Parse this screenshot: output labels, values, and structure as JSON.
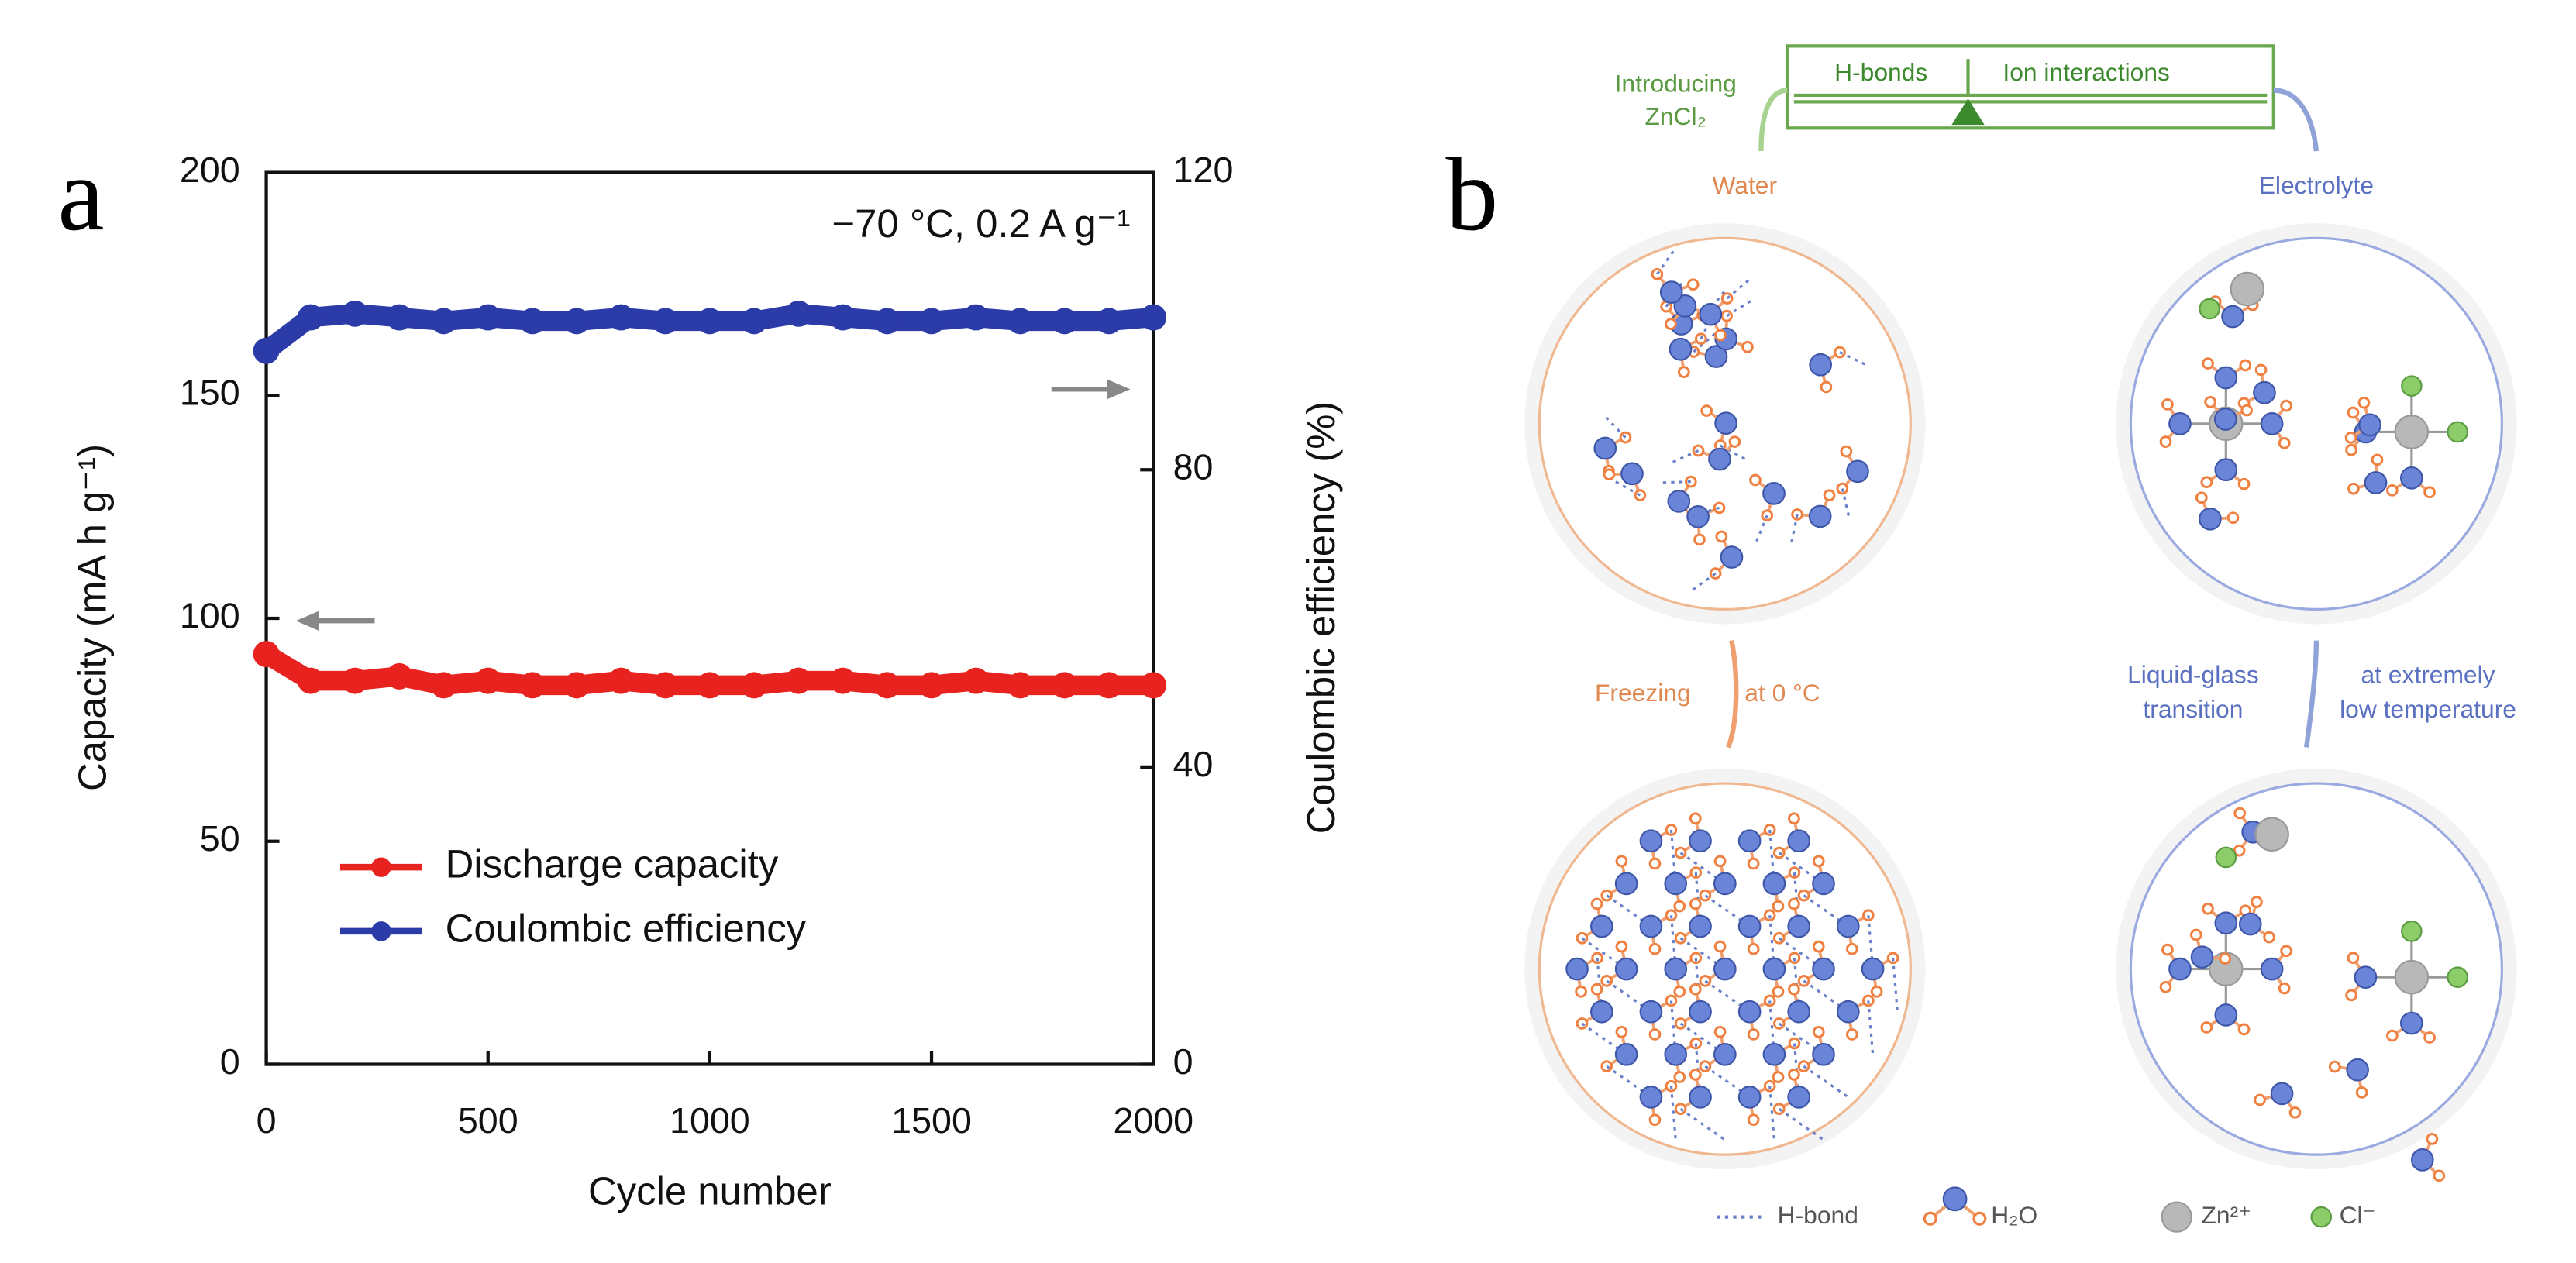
{
  "chart_data": {
    "type": "line",
    "panel_label": "a",
    "annotation": "−70 °C, 0.2 A g⁻¹",
    "xlabel": "Cycle number",
    "ylabel": "Capacity (mA h g⁻¹)",
    "y2label": "Coulombic efficiency (%)",
    "x": [
      0,
      100,
      200,
      300,
      400,
      500,
      600,
      700,
      800,
      900,
      1000,
      1100,
      1200,
      1300,
      1400,
      1500,
      1600,
      1700,
      1800,
      1900,
      2000
    ],
    "xlim": [
      0,
      2000
    ],
    "xticks": [
      0,
      500,
      1000,
      1500,
      2000
    ],
    "ylim": [
      0,
      200
    ],
    "yticks": [
      0,
      50,
      100,
      150,
      200
    ],
    "y2lim": [
      0,
      120
    ],
    "y2ticks": [
      0,
      40,
      80,
      120
    ],
    "legend": "lower left",
    "series": [
      {
        "name": "Discharge capacity",
        "color": "#e8221e",
        "values": [
          92,
          86,
          86,
          87,
          85,
          86,
          85,
          85,
          86,
          85,
          85,
          85,
          86,
          86,
          85,
          85,
          86,
          85,
          85,
          85,
          85
        ]
      },
      {
        "name": "Coulombic efficiency",
        "color": "#2b3ba8",
        "axis": "y2",
        "values": [
          96,
          100.5,
          101,
          100.5,
          100,
          100.5,
          100,
          100,
          100.5,
          100,
          100,
          100,
          101,
          100.5,
          100,
          100,
          100.5,
          100,
          100,
          100,
          100.5
        ]
      }
    ]
  },
  "diagram": {
    "panel_label": "b",
    "balance": {
      "left": "H-bonds",
      "right": "Ion interactions"
    },
    "transition": [
      "Introducing",
      "ZnCl₂"
    ],
    "states": {
      "water": "Water",
      "electrolyte": "Electrolyte"
    },
    "freezing": [
      "Freezing",
      "at 0 °C"
    ],
    "glass": {
      "left": [
        "Liquid-glass",
        "transition"
      ],
      "right": [
        "at extremely",
        "low temperature"
      ]
    },
    "legend": [
      "H-bond",
      "H₂O",
      "Zn²⁺",
      "Cl⁻"
    ]
  }
}
